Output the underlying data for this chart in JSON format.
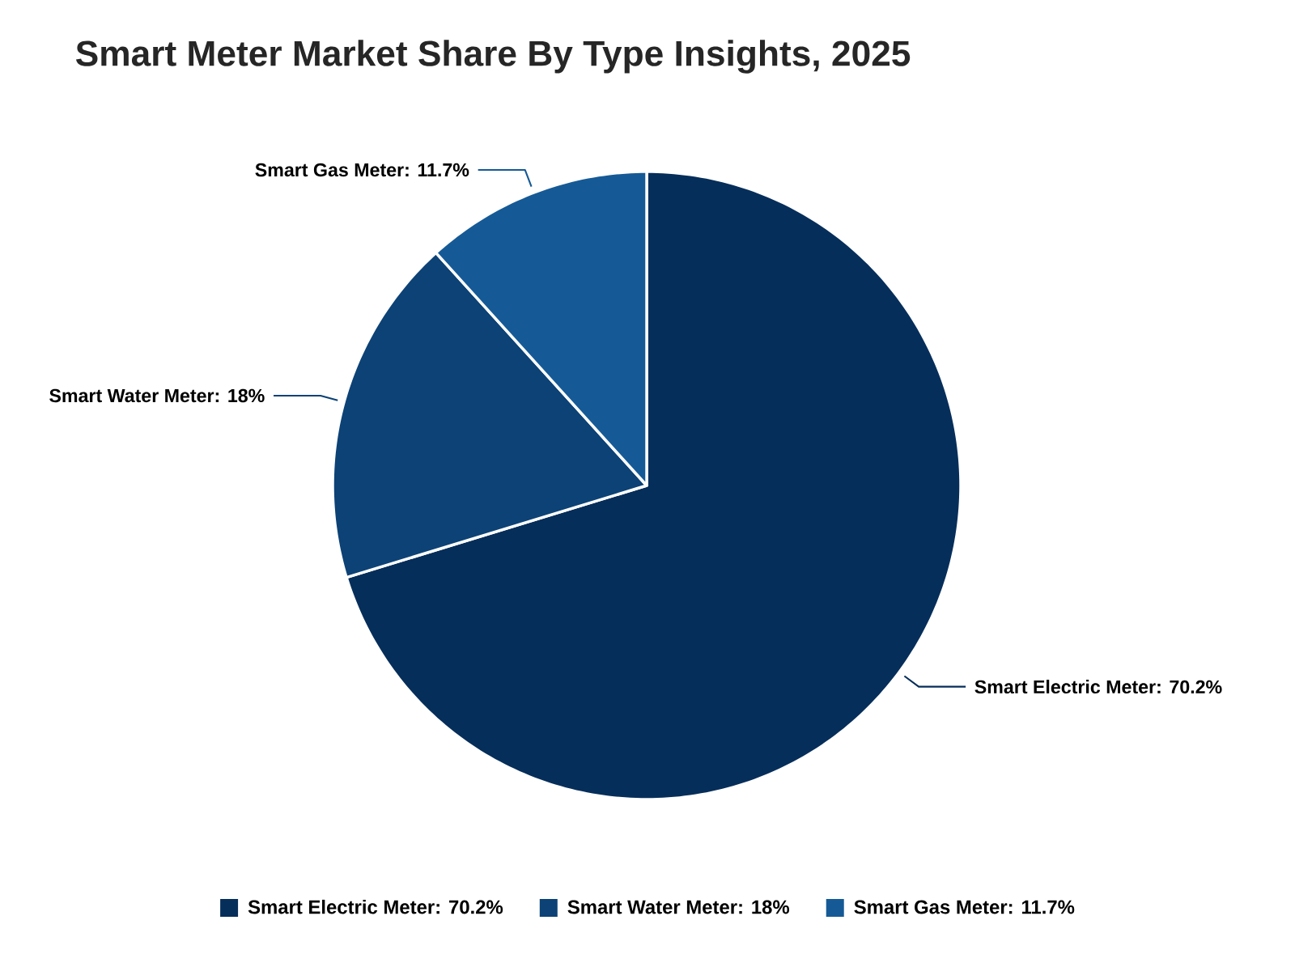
{
  "chart_data": {
    "type": "pie",
    "title": "Smart Meter Market Share By Type Insights, 2025",
    "categories": [
      "Smart Electric Meter: 70.2%",
      "Smart Water Meter: 18%",
      "Smart Gas Meter: 11.7%"
    ],
    "values": [
      70.2,
      18,
      11.7
    ],
    "colors": [
      "#062e5a",
      "#0c4276",
      "#155a96"
    ],
    "legend": "bottom"
  }
}
